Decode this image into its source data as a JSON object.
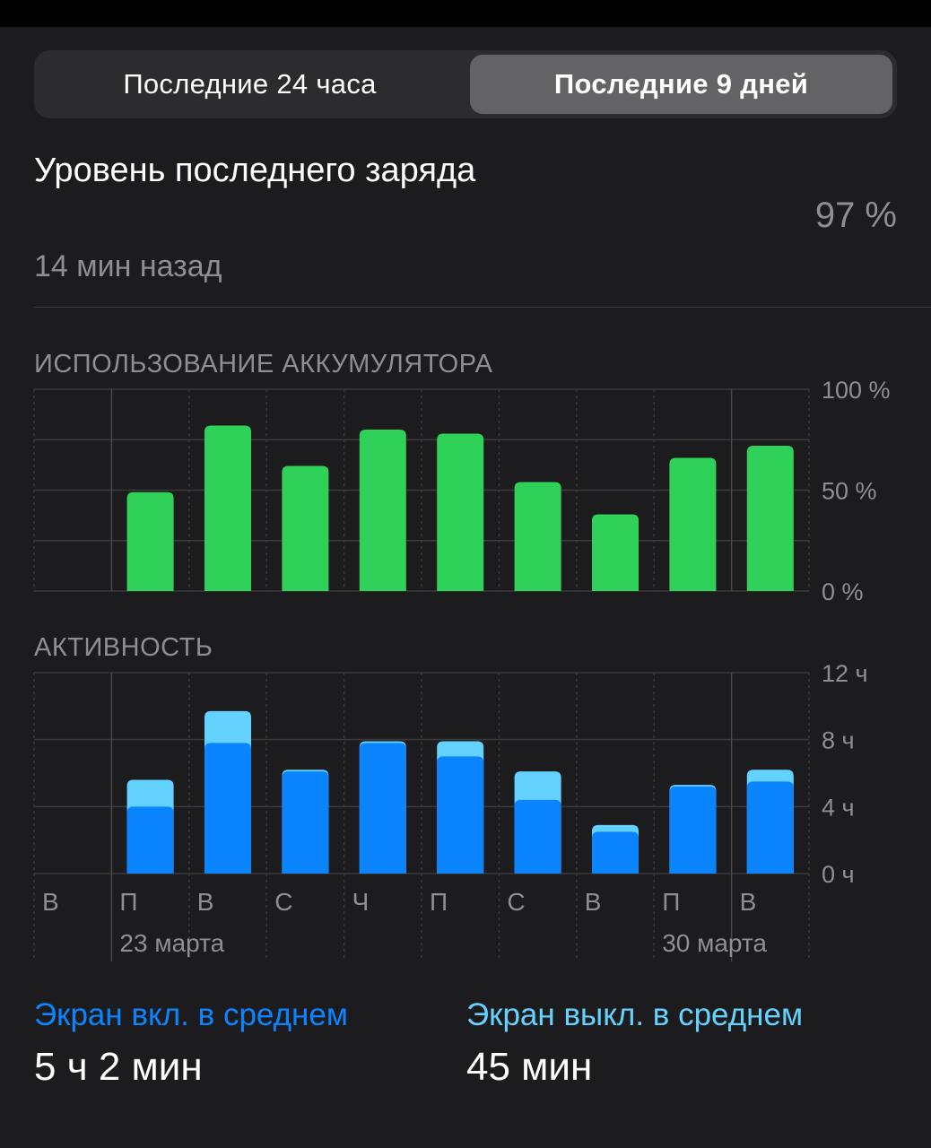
{
  "segmented": {
    "left_label": "Последние 24 часа",
    "right_label": "Последние 9 дней"
  },
  "last_charge": {
    "title": "Уровень последнего заряда",
    "ago": "14 мин назад",
    "value": "97 %"
  },
  "battery_section": {
    "title": "ИСПОЛЬЗОВАНИЕ АККУМУЛЯТОРА"
  },
  "activity_section": {
    "title": "АКТИВНОСТЬ"
  },
  "colors": {
    "background": "#1c1c1e",
    "battery_bar": "#30d158",
    "screen_on": "#0a84ff",
    "screen_off": "#64d2ff",
    "secondary_text": "#8e8e93"
  },
  "chart_data": [
    {
      "type": "bar",
      "title": "ИСПОЛЬЗОВАНИЕ АККУМУЛЯТОРА",
      "categories": [
        "В",
        "П",
        "В",
        "С",
        "Ч",
        "П",
        "С",
        "В",
        "П",
        "В"
      ],
      "values": [
        0,
        49,
        82,
        62,
        80,
        78,
        54,
        38,
        66,
        72
      ],
      "ylim": [
        0,
        100
      ],
      "y_ticks": [
        "100 %",
        "50 %",
        "0 %"
      ],
      "grid": true
    },
    {
      "type": "bar",
      "title": "АКТИВНОСТЬ",
      "stacked": true,
      "categories": [
        "В",
        "П",
        "В",
        "С",
        "Ч",
        "П",
        "С",
        "В",
        "П",
        "В"
      ],
      "date_labels": [
        "23 марта",
        "30 марта"
      ],
      "series": [
        {
          "name": "Экран вкл. в среднем",
          "values": [
            0,
            4.0,
            7.8,
            6.1,
            7.8,
            7.0,
            4.4,
            2.5,
            5.2,
            5.5
          ]
        },
        {
          "name": "Экран выкл. в среднем",
          "values": [
            0,
            1.6,
            1.9,
            0.1,
            0.1,
            0.9,
            1.7,
            0.4,
            0.1,
            0.7
          ]
        }
      ],
      "ylim": [
        0,
        12
      ],
      "y_ticks": [
        "12 ч",
        "8 ч",
        "4 ч",
        "0 ч"
      ],
      "grid": true
    }
  ],
  "footer": {
    "screen_on_label": "Экран вкл. в среднем",
    "screen_on_value": "5 ч 2 мин",
    "screen_off_label": "Экран выкл. в среднем",
    "screen_off_value": "45 мин"
  }
}
